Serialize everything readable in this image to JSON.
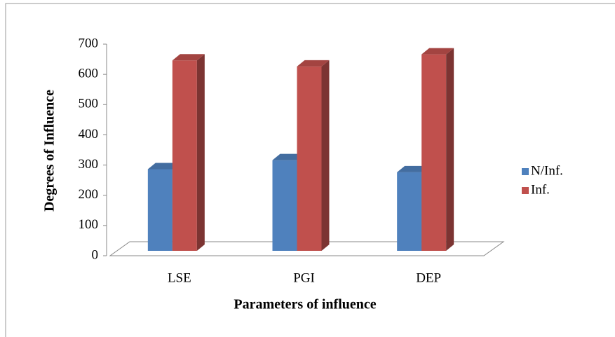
{
  "chart_data": {
    "type": "bar3d",
    "xlabel": "Parameters of influence",
    "ylabel": "Degrees of Influence",
    "categories": [
      "LSE",
      "PGI",
      "DEP"
    ],
    "series": [
      {
        "name": "N/Inf.",
        "color": "#4f81bd",
        "values": [
          270,
          300,
          260
        ]
      },
      {
        "name": "Inf.",
        "color": "#c0504d",
        "values": [
          630,
          610,
          650
        ]
      }
    ],
    "ylim": [
      0,
      700
    ],
    "yticks": [
      0,
      100,
      200,
      300,
      400,
      500,
      600,
      700
    ],
    "legend": "right"
  }
}
